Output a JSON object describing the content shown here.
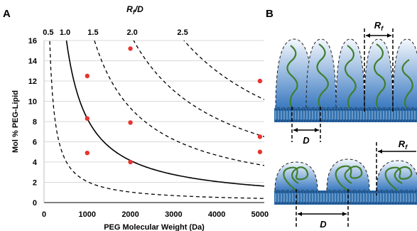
{
  "panels": {
    "a_label": "A",
    "b_label": "B"
  },
  "colors": {
    "curve": "#000000",
    "points": "#e8332e",
    "grid": "#d9d9d9",
    "brush_fill_top": "#f4f8fd",
    "brush_fill_bottom": "#3a79c0",
    "polymer": "#3f7f2d",
    "membrane": "#2f6fad"
  },
  "chart_data": {
    "type": "scatter",
    "xlabel": "PEG Molecular Weight (Da)",
    "ylabel": "Mol % PEG-Lipid",
    "top_axis_label": "R",
    "top_axis_label_sub": "f",
    "top_axis_label_tail": "/D",
    "xlim": [
      0,
      5100
    ],
    "ylim": [
      0,
      16
    ],
    "xticks": [
      0,
      1000,
      2000,
      3000,
      4000,
      5000
    ],
    "yticks": [
      0,
      2,
      4,
      6,
      8,
      10,
      12,
      14,
      16
    ],
    "xtick_labels": [
      "0",
      "1000",
      "2000",
      "3000",
      "4000",
      "5000"
    ],
    "ytick_labels": [
      "0",
      "2",
      "4",
      "6",
      "8",
      "10",
      "12",
      "14",
      "16"
    ],
    "grid": true,
    "curves": [
      {
        "ratio": 0.5,
        "label": "0.5",
        "style": "dashed"
      },
      {
        "ratio": 1.0,
        "label": "1.0",
        "style": "solid"
      },
      {
        "ratio": 1.5,
        "label": "1.5",
        "style": "dashed"
      },
      {
        "ratio": 2.0,
        "label": "2.0",
        "style": "dashed"
      },
      {
        "ratio": 2.5,
        "label": "2.5",
        "style": "dashed"
      }
    ],
    "points": [
      {
        "x": 1000,
        "y": 4.9
      },
      {
        "x": 1000,
        "y": 8.3
      },
      {
        "x": 1000,
        "y": 12.5
      },
      {
        "x": 2000,
        "y": 4.0
      },
      {
        "x": 2000,
        "y": 7.9
      },
      {
        "x": 2000,
        "y": 15.2
      },
      {
        "x": 5000,
        "y": 5.0
      },
      {
        "x": 5000,
        "y": 6.5
      },
      {
        "x": 5000,
        "y": 12.0
      }
    ]
  },
  "diagram": {
    "top_dimension_label": "R",
    "top_dimension_sub": "f",
    "top_spacing_label": "D",
    "bottom_dimension_label": "R",
    "bottom_dimension_sub": "f",
    "bottom_spacing_label": "D"
  }
}
